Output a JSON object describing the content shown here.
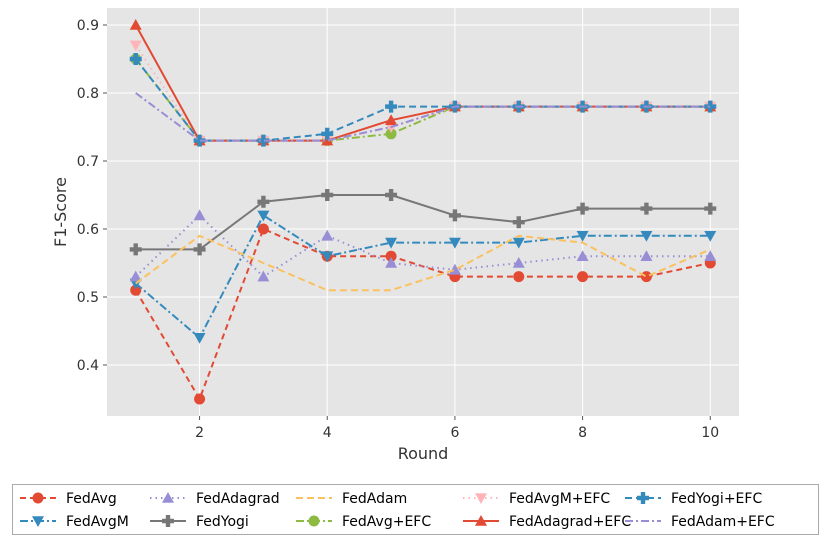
{
  "chart_data": {
    "type": "line",
    "title": "",
    "xlabel": "Round",
    "ylabel": "F1-Score",
    "xlim": [
      0.55,
      10.45
    ],
    "ylim": [
      0.325,
      0.925
    ],
    "x_ticks": [
      2,
      4,
      6,
      8,
      10
    ],
    "y_ticks": [
      0.4,
      0.5,
      0.6,
      0.7,
      0.8,
      0.9
    ],
    "x_tick_labels": [
      "2",
      "4",
      "6",
      "8",
      "10"
    ],
    "y_tick_labels": [
      "0.4",
      "0.5",
      "0.6",
      "0.7",
      "0.8",
      "0.9"
    ],
    "grid": true,
    "legend_position": "bottom",
    "x": [
      1,
      2,
      3,
      4,
      5,
      6,
      7,
      8,
      9,
      10
    ],
    "series": [
      {
        "name": "FedAvg",
        "color": "#e24a33",
        "dash": "6,4",
        "marker": "circle",
        "values": [
          0.51,
          0.35,
          0.6,
          0.56,
          0.56,
          0.53,
          0.53,
          0.53,
          0.53,
          0.55
        ]
      },
      {
        "name": "FedAvgM",
        "color": "#348abd",
        "dash": "8,3,2,3",
        "marker": "triangle-down",
        "values": [
          0.52,
          0.44,
          0.62,
          0.56,
          0.58,
          0.58,
          0.58,
          0.59,
          0.59,
          0.59
        ]
      },
      {
        "name": "FedAdagrad",
        "color": "#988ed5",
        "dash": "1.5,4",
        "marker": "triangle-up",
        "values": [
          0.53,
          0.62,
          0.53,
          0.59,
          0.55,
          0.54,
          0.55,
          0.56,
          0.56,
          0.56
        ]
      },
      {
        "name": "FedYogi",
        "color": "#777777",
        "dash": "",
        "marker": "plus",
        "values": [
          0.57,
          0.57,
          0.64,
          0.65,
          0.65,
          0.62,
          0.61,
          0.63,
          0.63,
          0.63
        ]
      },
      {
        "name": "FedAdam",
        "color": "#fbc15e",
        "dash": "7,4",
        "marker": "none",
        "values": [
          0.52,
          0.59,
          0.55,
          0.51,
          0.51,
          0.54,
          0.59,
          0.58,
          0.53,
          0.57
        ]
      },
      {
        "name": "FedAvg+EFC",
        "color": "#8eba42",
        "dash": "8,3,2,3",
        "marker": "circle",
        "values": [
          0.85,
          0.73,
          0.73,
          0.73,
          0.74,
          0.78,
          0.78,
          0.78,
          0.78,
          0.78
        ]
      },
      {
        "name": "FedAvgM+EFC",
        "color": "#ffb5b8",
        "dash": "1.5,4",
        "marker": "triangle-down",
        "values": [
          0.87,
          0.73,
          0.73,
          0.73,
          0.75,
          0.78,
          0.78,
          0.78,
          0.78,
          0.78
        ]
      },
      {
        "name": "FedAdagrad+EFC",
        "color": "#e24a33",
        "dash": "",
        "marker": "triangle-up",
        "values": [
          0.9,
          0.73,
          0.73,
          0.73,
          0.76,
          0.78,
          0.78,
          0.78,
          0.78,
          0.78
        ]
      },
      {
        "name": "FedYogi+EFC",
        "color": "#348abd",
        "dash": "7,4",
        "marker": "plus",
        "values": [
          0.85,
          0.73,
          0.73,
          0.74,
          0.78,
          0.78,
          0.78,
          0.78,
          0.78,
          0.78
        ]
      },
      {
        "name": "FedAdam+EFC",
        "color": "#988ed5",
        "dash": "8,3,2,3",
        "marker": "none",
        "values": [
          0.8,
          0.73,
          0.73,
          0.73,
          0.75,
          0.78,
          0.78,
          0.78,
          0.78,
          0.78
        ]
      }
    ]
  }
}
